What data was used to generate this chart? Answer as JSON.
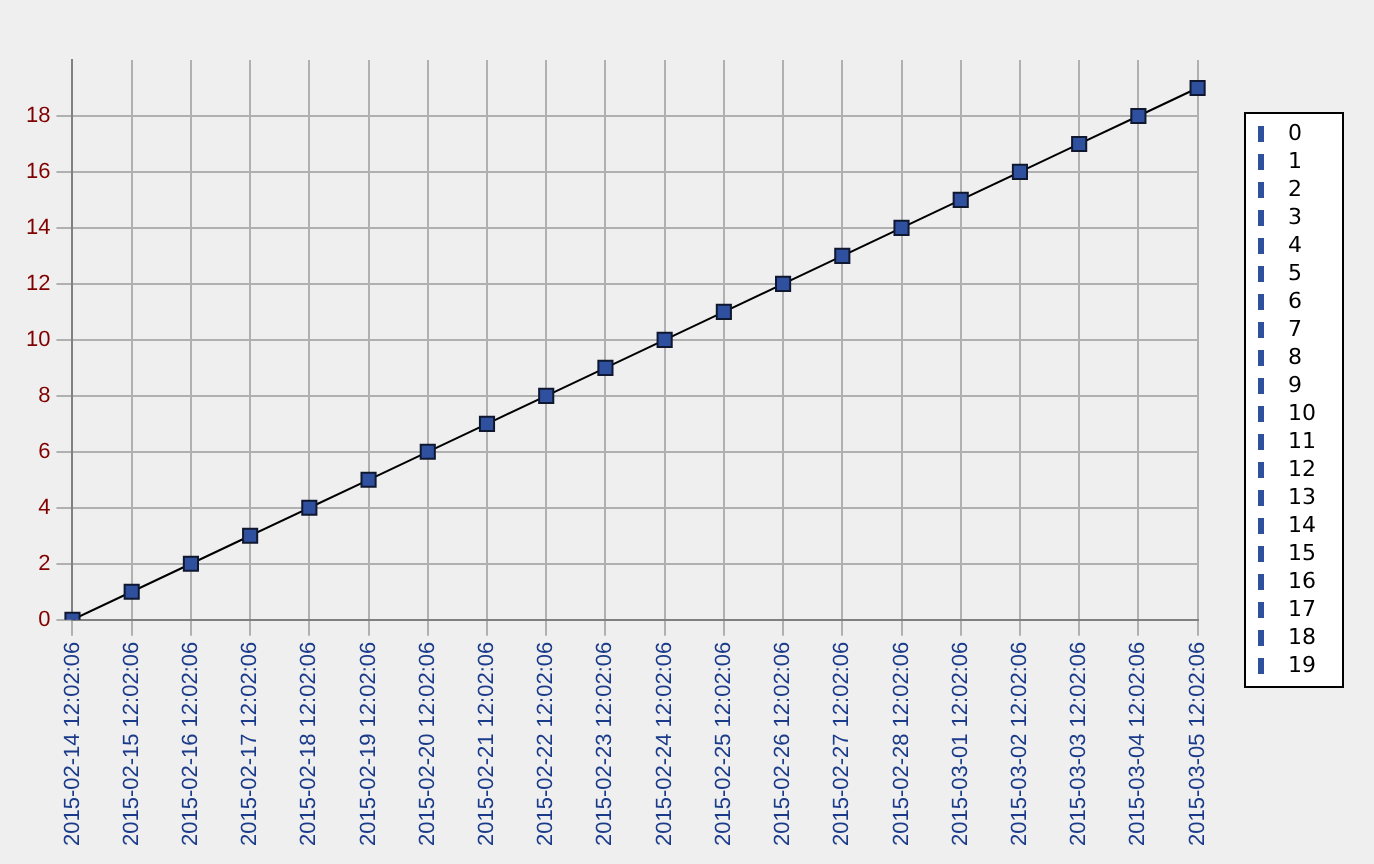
{
  "chart_data": {
    "type": "line",
    "categories": [
      "2015-02-14 12:02:06",
      "2015-02-15 12:02:06",
      "2015-02-16 12:02:06",
      "2015-02-17 12:02:06",
      "2015-02-18 12:02:06",
      "2015-02-19 12:02:06",
      "2015-02-20 12:02:06",
      "2015-02-21 12:02:06",
      "2015-02-22 12:02:06",
      "2015-02-23 12:02:06",
      "2015-02-24 12:02:06",
      "2015-02-25 12:02:06",
      "2015-02-26 12:02:06",
      "2015-02-27 12:02:06",
      "2015-02-28 12:02:06",
      "2015-03-01 12:02:06",
      "2015-03-02 12:02:06",
      "2015-03-03 12:02:06",
      "2015-03-04 12:02:06",
      "2015-03-05 12:02:06"
    ],
    "series": [
      {
        "color": "#2f4f9f",
        "values": [
          0,
          1,
          2,
          3,
          4,
          5,
          6,
          7,
          8,
          9,
          10,
          11,
          12,
          13,
          14,
          15,
          16,
          17,
          18,
          19
        ]
      }
    ],
    "annotations": [
      "0",
      "1",
      "2",
      "3",
      "4",
      "5",
      "6",
      "7",
      "8",
      "9",
      "10",
      "11",
      "12",
      "13",
      "14",
      "15",
      "16",
      "17",
      "18",
      "19"
    ],
    "ylim": [
      0,
      20
    ],
    "yticks": [
      0,
      2,
      4,
      6,
      8,
      10,
      12,
      14,
      16,
      18
    ],
    "grid": true,
    "marker": "square",
    "line_style": "solid"
  }
}
